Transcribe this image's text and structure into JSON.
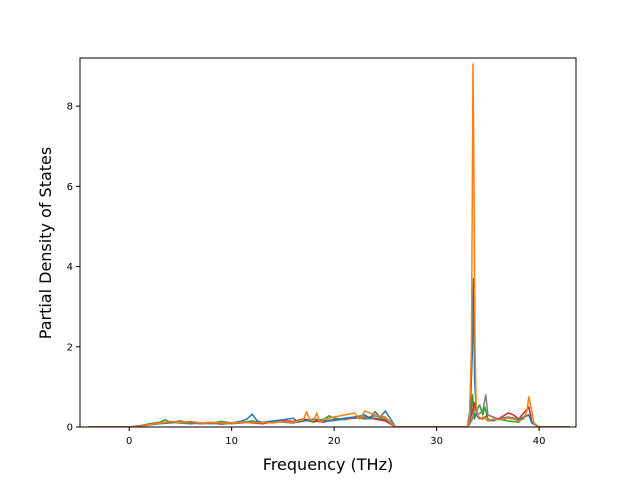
{
  "chart_data": {
    "type": "line",
    "title": "",
    "xlabel": "Frequency (THz)",
    "ylabel": "Partial Density of States",
    "xlim": [
      -4.8,
      43.6
    ],
    "ylim": [
      0,
      9.2
    ],
    "x_ticks": [
      0,
      10,
      20,
      30,
      40
    ],
    "y_ticks": [
      0,
      2,
      4,
      6,
      8
    ],
    "grid": false,
    "legend": "none",
    "colors": [
      "#1f77b4",
      "#ff7f0e",
      "#2ca02c",
      "#d62728",
      "#9467bd",
      "#8c564b",
      "#e377c2",
      "#7f7f7f",
      "#bcbd22",
      "#17becf"
    ],
    "series": [
      {
        "color": "#2ca02c",
        "x": [
          -4,
          0,
          1,
          2,
          3,
          3.5,
          4,
          5,
          6,
          7,
          8,
          9,
          10,
          11,
          12,
          13,
          14,
          15,
          16,
          17,
          18,
          19,
          19.5,
          20,
          21,
          22,
          23,
          24,
          25,
          25.5,
          26,
          33,
          33.3,
          33.5,
          33.7,
          33.9,
          34.2,
          34.5,
          34.7,
          35,
          35.5,
          36,
          37,
          38,
          38.5,
          39,
          39.3,
          40,
          43
        ],
        "values": [
          0,
          0,
          0.03,
          0.08,
          0.12,
          0.18,
          0.12,
          0.1,
          0.08,
          0.1,
          0.09,
          0.14,
          0.1,
          0.12,
          0.15,
          0.1,
          0.12,
          0.14,
          0.12,
          0.18,
          0.12,
          0.2,
          0.28,
          0.22,
          0.18,
          0.24,
          0.2,
          0.22,
          0.18,
          0.08,
          0,
          0,
          0.1,
          0.8,
          0.2,
          0.4,
          0.55,
          0.3,
          0.5,
          0.2,
          0.15,
          0.2,
          0.15,
          0.12,
          0.25,
          0.3,
          0.1,
          0,
          0
        ]
      },
      {
        "color": "#d62728",
        "x": [
          -4,
          0,
          1,
          2,
          3,
          4,
          5,
          6,
          7,
          8,
          9,
          10,
          11,
          12,
          13,
          14,
          15,
          16,
          17,
          18,
          19,
          20,
          21,
          22,
          23,
          24,
          25,
          26,
          33,
          33.4,
          33.7,
          34,
          34.5,
          35,
          36,
          37,
          37.5,
          38,
          38.5,
          39,
          39.3,
          40,
          43
        ],
        "values": [
          0,
          0,
          0.02,
          0.06,
          0.1,
          0.12,
          0.15,
          0.1,
          0.08,
          0.1,
          0.07,
          0.1,
          0.12,
          0.1,
          0.08,
          0.12,
          0.16,
          0.14,
          0.2,
          0.15,
          0.12,
          0.18,
          0.2,
          0.22,
          0.25,
          0.2,
          0.15,
          0,
          0,
          0.3,
          0.6,
          0.25,
          0.2,
          0.3,
          0.2,
          0.35,
          0.3,
          0.2,
          0.35,
          0.5,
          0.12,
          0,
          0
        ]
      },
      {
        "color": "#7f7f7f",
        "x": [
          -4,
          0,
          1,
          2,
          3,
          4,
          5,
          6,
          7,
          8,
          9,
          10,
          11,
          12,
          13,
          14,
          15,
          16,
          17,
          18,
          19,
          20,
          21,
          22,
          23,
          24,
          25,
          26,
          33,
          33.5,
          33.7,
          34,
          34.5,
          34.8,
          35,
          35.5,
          36,
          37,
          38,
          39,
          39.3,
          40,
          43
        ],
        "values": [
          0,
          0,
          0.02,
          0.05,
          0.08,
          0.1,
          0.12,
          0.1,
          0.09,
          0.08,
          0.1,
          0.08,
          0.1,
          0.12,
          0.1,
          0.14,
          0.12,
          0.1,
          0.15,
          0.18,
          0.14,
          0.16,
          0.2,
          0.25,
          0.22,
          0.28,
          0.2,
          0,
          0,
          0.2,
          0.5,
          0.3,
          0.4,
          0.8,
          0.3,
          0.25,
          0.2,
          0.25,
          0.2,
          0.3,
          0.1,
          0,
          0
        ]
      },
      {
        "color": "#1f77b4",
        "x": [
          -4,
          0,
          1,
          2,
          3,
          4,
          5,
          6,
          7,
          8,
          9,
          10,
          11,
          11.5,
          12,
          12.5,
          13,
          14,
          15,
          16,
          16.5,
          17,
          18,
          19,
          20,
          21,
          22,
          23,
          23.5,
          24,
          24.5,
          25,
          25.5,
          26,
          33,
          33.3,
          33.5,
          33.6,
          33.7,
          33.9,
          34.2,
          34.6,
          35,
          36,
          37,
          38,
          39,
          39.3,
          40,
          43
        ],
        "values": [
          0,
          0,
          0.03,
          0.06,
          0.1,
          0.12,
          0.14,
          0.12,
          0.1,
          0.12,
          0.08,
          0.1,
          0.15,
          0.2,
          0.32,
          0.15,
          0.12,
          0.15,
          0.18,
          0.22,
          0.12,
          0.15,
          0.2,
          0.16,
          0.18,
          0.22,
          0.25,
          0.3,
          0.22,
          0.38,
          0.25,
          0.4,
          0.2,
          0,
          0,
          0.5,
          2.0,
          3.7,
          1.2,
          0.3,
          0.2,
          0.25,
          0.15,
          0.2,
          0.22,
          0.18,
          0.3,
          0.1,
          0,
          0
        ]
      },
      {
        "color": "#ff7f0e",
        "x": [
          -4,
          0,
          1,
          2,
          3,
          4,
          5,
          6,
          7,
          8,
          9,
          10,
          11,
          12,
          13,
          14,
          15,
          16,
          17,
          17.3,
          17.6,
          18,
          18.3,
          18.6,
          19,
          20,
          21,
          22,
          22.5,
          23,
          24,
          25,
          26,
          33,
          33.2,
          33.4,
          33.55,
          33.65,
          33.75,
          33.85,
          34,
          34.3,
          34.6,
          35,
          35.5,
          36,
          37,
          37.5,
          38,
          38.5,
          38.8,
          39,
          39.2,
          39.5,
          40,
          43
        ],
        "values": [
          0,
          0,
          0.02,
          0.06,
          0.1,
          0.14,
          0.12,
          0.14,
          0.1,
          0.12,
          0.1,
          0.1,
          0.12,
          0.1,
          0.12,
          0.1,
          0.14,
          0.12,
          0.18,
          0.38,
          0.2,
          0.15,
          0.35,
          0.12,
          0.2,
          0.25,
          0.3,
          0.35,
          0.2,
          0.4,
          0.3,
          0.25,
          0,
          0,
          0.2,
          2.0,
          9.05,
          6.0,
          2.0,
          0.6,
          0.3,
          0.2,
          0.25,
          0.15,
          0.2,
          0.18,
          0.22,
          0.2,
          0.15,
          0.2,
          0.4,
          0.75,
          0.5,
          0.1,
          0,
          0
        ]
      }
    ]
  }
}
